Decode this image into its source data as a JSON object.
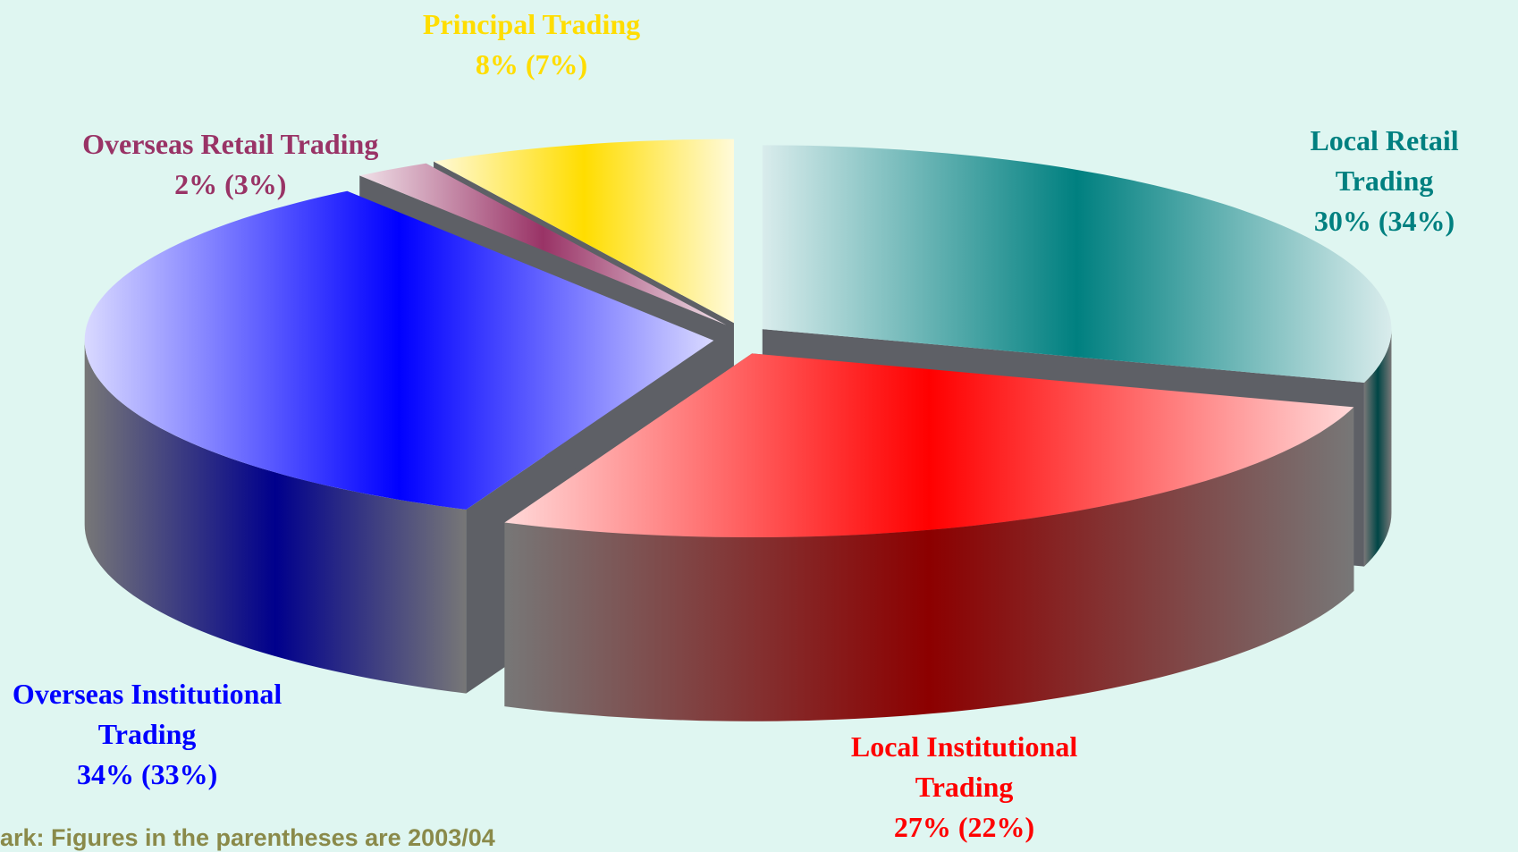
{
  "chart_data": {
    "type": "pie",
    "three_d": true,
    "categories": [
      "Local Retail Trading",
      "Local Institutional Trading",
      "Overseas Institutional Trading",
      "Overseas Retail Trading",
      "Principal Trading"
    ],
    "values": [
      30,
      27,
      34,
      2,
      8
    ],
    "value_labels": [
      "30% (34%)",
      "27% (22%)",
      "34% (33%)",
      "2% (3%)",
      "8% (7%)"
    ],
    "colors": [
      "#008080",
      "#ff0000",
      "#0000ff",
      "#993366",
      "#ffdd00"
    ],
    "note": "ark: Figures in the parentheses are 2003/04"
  }
}
